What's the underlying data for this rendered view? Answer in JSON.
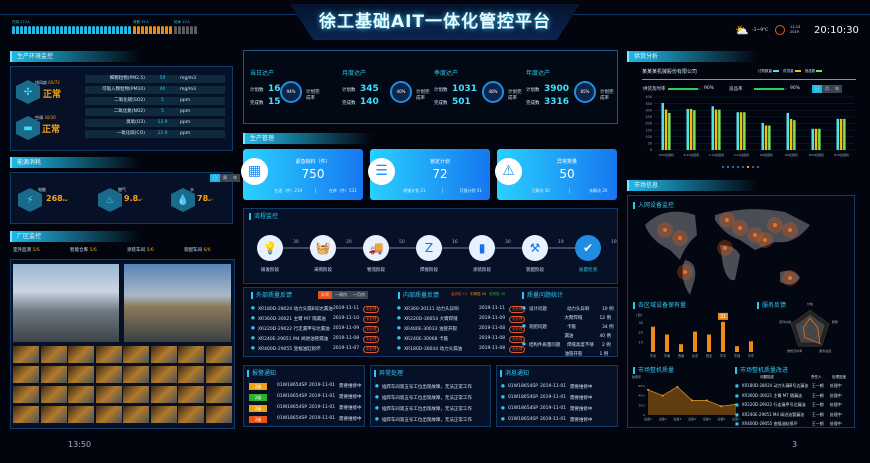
{
  "header": {
    "title": "徐工基础AIT一体化管控平台",
    "weather": "-1~9℃",
    "date": "11-13\n2019",
    "time": "20:10:30",
    "staff": [
      {
        "label": "在岗 272人",
        "count": 30,
        "color": "#22b8e8"
      },
      {
        "label": "请假 32人",
        "count": 10,
        "color": "#e88a12"
      },
      {
        "label": "轮休 12人",
        "count": 6,
        "color": "#5b5b5b"
      }
    ],
    "icons": {
      "weather": "sun-cloud-icon",
      "clock": "clock-icon"
    }
  },
  "env": {
    "title": "生产环境监控",
    "devices": [
      {
        "name": "排风扇",
        "ratio": "60/72",
        "status": "正常"
      },
      {
        "name": "空调",
        "ratio": "30/30",
        "status": "正常"
      }
    ],
    "rows": [
      {
        "name": "细颗粒物(PM2.5)",
        "value": "59",
        "unit": "mg/m3"
      },
      {
        "name": "可吸入颗粒物(PM10)",
        "value": "40",
        "unit": "mg/m3"
      },
      {
        "name": "二氧化硫(SO2)",
        "value": "5",
        "unit": "ppm"
      },
      {
        "name": "二氧化氮(NO2)",
        "value": "5",
        "unit": "ppm"
      },
      {
        "name": "臭氧(O3)",
        "value": "12.9",
        "unit": "ppm"
      },
      {
        "name": "一氧化碳(CO)",
        "value": "12.9",
        "unit": "ppm"
      }
    ]
  },
  "energy": {
    "title": "能源消耗",
    "tabs": [
      "日",
      "周",
      "年"
    ],
    "items": [
      {
        "name": "电能",
        "value": "268",
        "unit": "kw"
      },
      {
        "name": "燃气",
        "value": "9.8",
        "unit": "m³"
      },
      {
        "name": "水",
        "value": "78",
        "unit": "m³"
      }
    ]
  },
  "plant": {
    "title": "厂区监控",
    "areas": [
      {
        "name": "室外监测",
        "value": "5/6"
      },
      {
        "name": "智能仓库",
        "value": "5/6"
      },
      {
        "name": "涂装车间",
        "value": "5/6"
      },
      {
        "name": "装配车间",
        "value": "6/6"
      }
    ],
    "footer_time": "13:50",
    "page": "3"
  },
  "kpi": [
    {
      "name": "当日达产",
      "plan_label": "计划数",
      "plan": "16",
      "done_label": "完成数",
      "done": "15",
      "rate": "94%",
      "rate_label": "计划完成率"
    },
    {
      "name": "月度达产",
      "plan_label": "计划数",
      "plan": "345",
      "done_label": "完成数",
      "done": "140",
      "rate": "40%",
      "rate_label": "计划完成率"
    },
    {
      "name": "季度达产",
      "plan_label": "计划数",
      "plan": "1031",
      "done_label": "完成数",
      "done": "501",
      "rate": "48%",
      "rate_label": "计划完成率"
    },
    {
      "name": "年度达产",
      "plan_label": "计划数",
      "plan": "3900",
      "done_label": "完成数",
      "done": "3316",
      "rate": "85%",
      "rate_label": "计划完成率"
    }
  ],
  "prod": {
    "title": "生产管理",
    "cards": [
      {
        "title": "紧急缺料（件）",
        "value": "750",
        "a": "在途（件）219",
        "b": "在库（件）531",
        "icon": "boxes-icon"
      },
      {
        "title": "锁定计划",
        "value": "72",
        "a": "周锁计划 21",
        "b": "月锁计划 51",
        "icon": "plan-clock-icon"
      },
      {
        "title": "异常数量",
        "value": "50",
        "a": "已解决 30",
        "b": "未解决 20",
        "icon": "warning-icon"
      }
    ]
  },
  "flow": {
    "title": "流程监控",
    "steps": [
      {
        "label": "研发阶段",
        "icon": "bulb-icon",
        "g": "💡"
      },
      {
        "label": "采购阶段",
        "icon": "basket-icon",
        "g": "🧺"
      },
      {
        "label": "物流阶段",
        "icon": "truck-icon",
        "g": "🚚"
      },
      {
        "label": "焊接阶段",
        "icon": "welding-robot-icon",
        "g": "Z"
      },
      {
        "label": "涂装阶段",
        "icon": "paint-roller-icon",
        "g": "▮"
      },
      {
        "label": "装配阶段",
        "icon": "drill-icon",
        "g": "⚒"
      },
      {
        "label": "质量检测",
        "icon": "shield-check-icon",
        "g": "✔"
      }
    ],
    "nums": [
      "30",
      "20",
      "50",
      "16",
      "30",
      "19",
      "19"
    ]
  },
  "ext_quality": {
    "title": "外部质量反馈",
    "tabs": [
      "本周",
      "一周内",
      "一月内"
    ],
    "rows": [
      {
        "t": "XR180D-28024 动力头漏B号达漏油",
        "d": "2019-11-11",
        "s": "未处理"
      },
      {
        "t": "XR360D-30021 主臂 M7 隔漏油",
        "d": "2019-11-10",
        "s": "未处理"
      },
      {
        "t": "XR220D-29022 行走漏甲号达漏油",
        "d": "2019-11-09",
        "s": "未处理"
      },
      {
        "t": "XR240E-29051 M4 阀进油管漏油",
        "d": "2019-11-08",
        "s": "未处理"
      },
      {
        "t": "XR400D-29055 变幅油缸损坏",
        "d": "2019-11-07",
        "s": "未处理"
      }
    ]
  },
  "int_quality": {
    "title": "内部质量反馈",
    "legend": [
      "高风险 10",
      "中风险 20",
      "低风险 30"
    ],
    "rows": [
      {
        "t": "XR360-30111 动力头异响",
        "d": "2019-11-11",
        "s": "未处理"
      },
      {
        "t": "XR220D-30054 大臂焊缝",
        "d": "2019-11-09",
        "s": "未处理"
      },
      {
        "t": "XR400E-30033 油管开裂",
        "d": "2019-11-08",
        "s": "未处理"
      },
      {
        "t": "XR240E-30068 卡箍",
        "d": "2019-11-08",
        "s": "未处理"
      },
      {
        "t": "XR180D-30044 动力头漏油",
        "d": "2019-11-08",
        "s": "未处理"
      }
    ]
  },
  "issue_stats": {
    "title": "质量问题统计",
    "rows": [
      {
        "cat": "设计问题",
        "item": "动力头异响",
        "n": "10 例"
      },
      {
        "cat": "",
        "item": "大臂焊缝",
        "n": "12 例"
      },
      {
        "cat": "装配问题",
        "item": "卡箍",
        "n": "34 例"
      },
      {
        "cat": "",
        "item": "漏油",
        "n": "40 例"
      },
      {
        "cat": "结构件质量问题",
        "item": "焊缝高度不够",
        "n": "2 例"
      },
      {
        "cat": "",
        "item": "油管开裂",
        "n": "1 例"
      }
    ]
  },
  "alarms": {
    "title": "报警通知",
    "rows": [
      {
        "tag": "2级",
        "color": "#f0a10f",
        "code": "01W18654SP",
        "d": "2019-11-01",
        "s": "需要维修中"
      },
      {
        "tag": "2级",
        "color": "#27b52a",
        "code": "01W18654SP",
        "d": "2019-11-01",
        "s": "需要维修中"
      },
      {
        "tag": "2级",
        "color": "#f0a10f",
        "code": "01W18654SP",
        "d": "2019-11-01",
        "s": "需要维修中"
      },
      {
        "tag": "2级",
        "color": "#e8541c",
        "code": "01W18654SP",
        "d": "2019-11-01",
        "s": "需要维修中"
      }
    ]
  },
  "exceptions": {
    "title": "异常处理",
    "rows": [
      "插焊车间第五号工位出现故障，无法正常工作",
      "插焊车间第五号工位出现故障，无法正常工作",
      "插焊车间第五号工位出现故障，无法正常工作",
      "插焊车间第五号工位出现故障，无法正常工作"
    ]
  },
  "messages": {
    "title": "消息通知",
    "rows": [
      {
        "code": "01W18654SP",
        "d": "2019-11-01",
        "s": "需要维修中"
      },
      {
        "code": "01W18654SP",
        "d": "2019-11-01",
        "s": "需要维修中"
      },
      {
        "code": "01W18654SP",
        "d": "2019-11-01",
        "s": "需要维修中"
      },
      {
        "code": "01W18654SP",
        "d": "2019-11-01",
        "s": "需要维修中"
      }
    ]
  },
  "supply": {
    "title": "供货分析",
    "company": "某某某机械股份有限公司",
    "legend": [
      {
        "name": "订购数量",
        "color": "#52e0f0"
      },
      {
        "name": "供货量",
        "color": "#f2c200"
      },
      {
        "name": "良品数",
        "color": "#7ee05a"
      }
    ],
    "rates": [
      {
        "name": "供货及时率",
        "value": 90,
        "text": "90%"
      },
      {
        "name": "良品率",
        "value": 90,
        "text": "90%"
      }
    ],
    "tabs": [
      "日",
      "月",
      "年"
    ]
  },
  "chart_data": [
    {
      "type": "bar",
      "categories": [
        "R60挖掘机",
        "R-21挖掘机",
        "T-12挖掘机",
        "T-21挖掘机",
        "R9挖掘机",
        "R5挖掘机",
        "R56挖掘机",
        "R78挖掘机"
      ],
      "ylim": [
        0,
        400
      ],
      "yticks": [
        0,
        50,
        100,
        150,
        200,
        250,
        300,
        350,
        400
      ],
      "series": [
        {
          "name": "订购数量",
          "values": [
            355,
            310,
            330,
            285,
            205,
            280,
            160,
            235
          ]
        },
        {
          "name": "供货量",
          "values": [
            305,
            310,
            305,
            285,
            185,
            235,
            160,
            235
          ]
        },
        {
          "name": "良品数",
          "values": [
            280,
            300,
            305,
            285,
            185,
            225,
            160,
            235
          ]
        }
      ]
    },
    {
      "type": "bar",
      "title": "各区域设备保有量",
      "ylabel": "(台)",
      "categories": [
        "华北",
        "华南",
        "西南",
        "北京",
        "西北",
        "华中",
        "东部",
        "华东"
      ],
      "values": [
        26,
        18,
        8,
        21,
        18,
        31,
        6,
        11
      ],
      "ylim": [
        0,
        35
      ],
      "yticks": [
        10,
        20,
        30
      ],
      "highlight": "31"
    },
    {
      "type": "area",
      "title": "市场整机质量",
      "ylabel": "故障率",
      "categories": [
        "设备1",
        "设备2",
        "设备3",
        "设备4",
        "设备5",
        "设备6",
        "设备7"
      ],
      "values": [
        52,
        40,
        58,
        30,
        30,
        18,
        22
      ],
      "ylim": [
        0,
        70
      ],
      "yticks": [
        "0",
        "20%",
        "40%",
        "60%"
      ]
    },
    {
      "type": "radar",
      "title": "服务反馈",
      "axes": [
        "价格",
        "质量",
        "服务态度",
        "维修及时率",
        "配件价格"
      ],
      "values": [
        0.6,
        0.4,
        0.85,
        0.45,
        0.35
      ]
    }
  ],
  "market": {
    "title": "市场信息",
    "map_title": "入网设备监控",
    "quality_title": "市场整机质量改进",
    "quality_cols": [
      "问题描述",
      "责任人",
      "处理进度"
    ],
    "quality_rows": [
      {
        "t": "XR180D-28024 动力头漏B号达漏油",
        "p": "王一鹤",
        "s": "处理中"
      },
      {
        "t": "XR360D-30021 主臂 M7 隔漏油",
        "p": "王一鹤",
        "s": "处理中"
      },
      {
        "t": "XR220D-29022 行走漏甲号达漏油",
        "p": "王一鹤",
        "s": "处理中"
      },
      {
        "t": "XR240E-29051 M4 阀进油管漏油",
        "p": "王一鹤",
        "s": "处理中"
      },
      {
        "t": "XR400D-29055 变幅油缸损坏",
        "p": "王一鹤",
        "s": "处理中"
      }
    ]
  }
}
